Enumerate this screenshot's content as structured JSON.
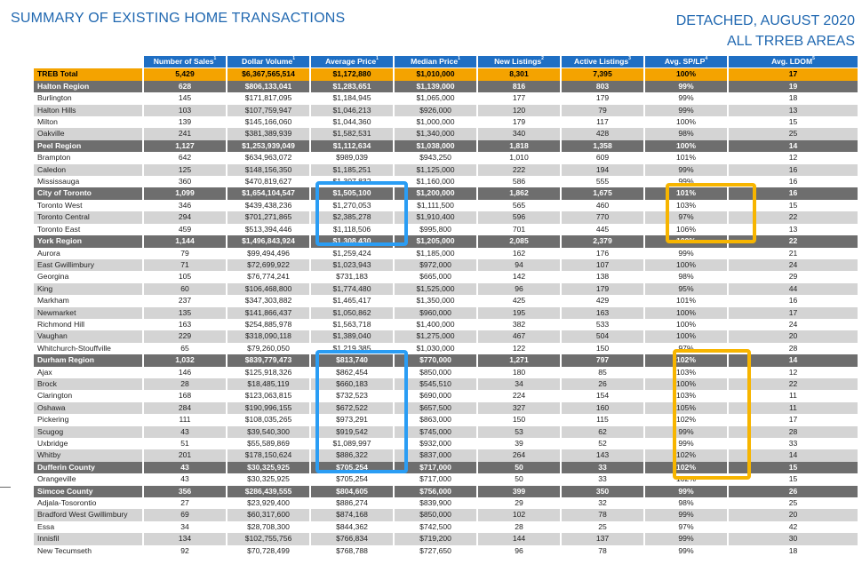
{
  "header": {
    "title_left": "SUMMARY OF EXISTING HOME TRANSACTIONS",
    "title_right_1": "DETACHED, AUGUST 2020",
    "title_right_2": "ALL TRREB AREAS"
  },
  "columns": [
    {
      "label": "Number of Sales",
      "note": "1"
    },
    {
      "label": "Dollar Volume",
      "note": "1"
    },
    {
      "label": "Average Price",
      "note": "1"
    },
    {
      "label": "Median Price",
      "note": "1"
    },
    {
      "label": "New Listings",
      "note": "2"
    },
    {
      "label": "Active Listings",
      "note": "3"
    },
    {
      "label": "Avg. SP/LP",
      "note": "4"
    },
    {
      "label": "Avg. LDOM",
      "note": "5"
    }
  ],
  "rows": [
    {
      "type": "total",
      "area": "TREB Total",
      "values": [
        "5,429",
        "$6,367,565,514",
        "$1,172,880",
        "$1,010,000",
        "8,301",
        "7,395",
        "100%",
        "17"
      ]
    },
    {
      "type": "region",
      "area": "Halton Region",
      "values": [
        "628",
        "$806,133,041",
        "$1,283,651",
        "$1,139,000",
        "816",
        "803",
        "99%",
        "19"
      ]
    },
    {
      "type": "sub",
      "area": "Burlington",
      "values": [
        "145",
        "$171,817,095",
        "$1,184,945",
        "$1,065,000",
        "177",
        "179",
        "99%",
        "18"
      ]
    },
    {
      "type": "sub",
      "area": "Halton Hills",
      "values": [
        "103",
        "$107,759,947",
        "$1,046,213",
        "$926,000",
        "120",
        "79",
        "99%",
        "13"
      ]
    },
    {
      "type": "sub",
      "area": "Milton",
      "values": [
        "139",
        "$145,166,060",
        "$1,044,360",
        "$1,000,000",
        "179",
        "117",
        "100%",
        "15"
      ]
    },
    {
      "type": "sub",
      "area": "Oakville",
      "values": [
        "241",
        "$381,389,939",
        "$1,582,531",
        "$1,340,000",
        "340",
        "428",
        "98%",
        "25"
      ]
    },
    {
      "type": "region",
      "area": "Peel Region",
      "values": [
        "1,127",
        "$1,253,939,049",
        "$1,112,634",
        "$1,038,000",
        "1,818",
        "1,358",
        "100%",
        "14"
      ]
    },
    {
      "type": "sub",
      "area": "Brampton",
      "values": [
        "642",
        "$634,963,072",
        "$989,039",
        "$943,250",
        "1,010",
        "609",
        "101%",
        "12"
      ]
    },
    {
      "type": "sub",
      "area": "Caledon",
      "values": [
        "125",
        "$148,156,350",
        "$1,185,251",
        "$1,125,000",
        "222",
        "194",
        "99%",
        "16"
      ]
    },
    {
      "type": "sub",
      "area": "Mississauga",
      "values": [
        "360",
        "$470,819,627",
        "$1,307,832",
        "$1,160,000",
        "586",
        "555",
        "99%",
        "16"
      ]
    },
    {
      "type": "region",
      "area": "City of Toronto",
      "values": [
        "1,099",
        "$1,654,104,547",
        "$1,505,100",
        "$1,200,000",
        "1,862",
        "1,675",
        "101%",
        "16"
      ]
    },
    {
      "type": "sub",
      "area": "Toronto West",
      "values": [
        "346",
        "$439,438,236",
        "$1,270,053",
        "$1,111,500",
        "565",
        "460",
        "103%",
        "15"
      ]
    },
    {
      "type": "sub",
      "area": "Toronto Central",
      "values": [
        "294",
        "$701,271,865",
        "$2,385,278",
        "$1,910,400",
        "596",
        "770",
        "97%",
        "22"
      ]
    },
    {
      "type": "sub",
      "area": "Toronto East",
      "values": [
        "459",
        "$513,394,446",
        "$1,118,506",
        "$995,800",
        "701",
        "445",
        "106%",
        "13"
      ]
    },
    {
      "type": "region",
      "area": "York Region",
      "values": [
        "1,144",
        "$1,496,843,924",
        "$1,308,430",
        "$1,205,000",
        "2,085",
        "2,379",
        "100%",
        "22"
      ]
    },
    {
      "type": "sub",
      "area": "Aurora",
      "values": [
        "79",
        "$99,494,496",
        "$1,259,424",
        "$1,185,000",
        "162",
        "176",
        "99%",
        "21"
      ]
    },
    {
      "type": "sub",
      "area": "East Gwillimbury",
      "values": [
        "71",
        "$72,699,922",
        "$1,023,943",
        "$972,000",
        "94",
        "107",
        "100%",
        "24"
      ]
    },
    {
      "type": "sub",
      "area": "Georgina",
      "values": [
        "105",
        "$76,774,241",
        "$731,183",
        "$665,000",
        "142",
        "138",
        "98%",
        "29"
      ]
    },
    {
      "type": "sub",
      "area": "King",
      "values": [
        "60",
        "$106,468,800",
        "$1,774,480",
        "$1,525,000",
        "96",
        "179",
        "95%",
        "44"
      ]
    },
    {
      "type": "sub",
      "area": "Markham",
      "values": [
        "237",
        "$347,303,882",
        "$1,465,417",
        "$1,350,000",
        "425",
        "429",
        "101%",
        "16"
      ]
    },
    {
      "type": "sub",
      "area": "Newmarket",
      "values": [
        "135",
        "$141,866,437",
        "$1,050,862",
        "$960,000",
        "195",
        "163",
        "100%",
        "17"
      ]
    },
    {
      "type": "sub",
      "area": "Richmond Hill",
      "values": [
        "163",
        "$254,885,978",
        "$1,563,718",
        "$1,400,000",
        "382",
        "533",
        "100%",
        "24"
      ]
    },
    {
      "type": "sub",
      "area": "Vaughan",
      "values": [
        "229",
        "$318,090,118",
        "$1,389,040",
        "$1,275,000",
        "467",
        "504",
        "100%",
        "20"
      ]
    },
    {
      "type": "sub",
      "area": "Whitchurch-Stouffville",
      "values": [
        "65",
        "$79,260,050",
        "$1,219,385",
        "$1,030,000",
        "122",
        "150",
        "97%",
        "28"
      ]
    },
    {
      "type": "region",
      "area": "Durham Region",
      "values": [
        "1,032",
        "$839,779,473",
        "$813,740",
        "$770,000",
        "1,271",
        "797",
        "102%",
        "14"
      ]
    },
    {
      "type": "sub",
      "area": "Ajax",
      "values": [
        "146",
        "$125,918,326",
        "$862,454",
        "$850,000",
        "180",
        "85",
        "103%",
        "12"
      ]
    },
    {
      "type": "sub",
      "area": "Brock",
      "values": [
        "28",
        "$18,485,119",
        "$660,183",
        "$545,510",
        "34",
        "26",
        "100%",
        "22"
      ]
    },
    {
      "type": "sub",
      "area": "Clarington",
      "values": [
        "168",
        "$123,063,815",
        "$732,523",
        "$690,000",
        "224",
        "154",
        "103%",
        "11"
      ]
    },
    {
      "type": "sub",
      "area": "Oshawa",
      "values": [
        "284",
        "$190,996,155",
        "$672,522",
        "$657,500",
        "327",
        "160",
        "105%",
        "11"
      ]
    },
    {
      "type": "sub",
      "area": "Pickering",
      "values": [
        "111",
        "$108,035,265",
        "$973,291",
        "$863,000",
        "150",
        "115",
        "102%",
        "17"
      ]
    },
    {
      "type": "sub",
      "area": "Scugog",
      "values": [
        "43",
        "$39,540,300",
        "$919,542",
        "$745,000",
        "53",
        "62",
        "99%",
        "28"
      ]
    },
    {
      "type": "sub",
      "area": "Uxbridge",
      "values": [
        "51",
        "$55,589,869",
        "$1,089,997",
        "$932,000",
        "39",
        "52",
        "99%",
        "33"
      ]
    },
    {
      "type": "sub",
      "area": "Whitby",
      "values": [
        "201",
        "$178,150,624",
        "$886,322",
        "$837,000",
        "264",
        "143",
        "102%",
        "14"
      ]
    },
    {
      "type": "region",
      "area": "Dufferin County",
      "values": [
        "43",
        "$30,325,925",
        "$705,254",
        "$717,000",
        "50",
        "33",
        "102%",
        "15"
      ]
    },
    {
      "type": "sub",
      "area": "Orangeville",
      "values": [
        "43",
        "$30,325,925",
        "$705,254",
        "$717,000",
        "50",
        "33",
        "102%",
        "15"
      ]
    },
    {
      "type": "region",
      "area": "Simcoe County",
      "values": [
        "356",
        "$286,439,555",
        "$804,605",
        "$756,000",
        "399",
        "350",
        "99%",
        "26"
      ]
    },
    {
      "type": "sub",
      "area": "Adjala-Tosorontio",
      "values": [
        "27",
        "$23,929,400",
        "$886,274",
        "$839,900",
        "29",
        "32",
        "98%",
        "25"
      ]
    },
    {
      "type": "sub",
      "area": "Bradford West Gwillimbury",
      "values": [
        "69",
        "$60,317,600",
        "$874,168",
        "$850,000",
        "102",
        "78",
        "99%",
        "20"
      ]
    },
    {
      "type": "sub",
      "area": "Essa",
      "values": [
        "34",
        "$28,708,300",
        "$844,362",
        "$742,500",
        "28",
        "25",
        "97%",
        "42"
      ]
    },
    {
      "type": "sub",
      "area": "Innisfil",
      "values": [
        "134",
        "$102,755,756",
        "$766,834",
        "$719,200",
        "144",
        "137",
        "99%",
        "30"
      ]
    },
    {
      "type": "sub",
      "area": "New Tecumseth",
      "values": [
        "92",
        "$70,728,499",
        "$768,788",
        "$727,650",
        "96",
        "78",
        "99%",
        "18"
      ]
    }
  ],
  "highlight_colors": {
    "blue": "#2a9df4",
    "orange": "#f7b500"
  }
}
